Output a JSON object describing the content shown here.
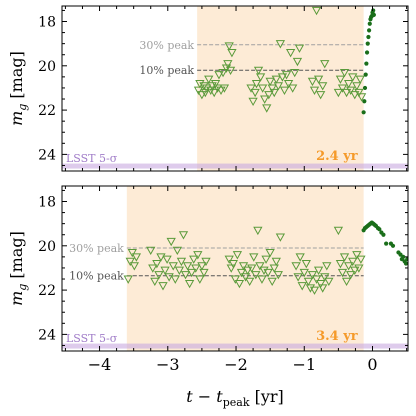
{
  "colors": {
    "window": "#fdebd6",
    "window_label": "#f59a2a",
    "lsst_band": "#c8a8e0",
    "lsst_label": "#a07cc8",
    "upper_limit": "#5a9a3a",
    "detection": "#1a6e1a",
    "line30": "#a0a0a0",
    "line10": "#555555"
  },
  "figure": {
    "xlabel": "t − t_peak [yr]",
    "x_tick_labels": [
      "−4",
      "−3",
      "−2",
      "−1",
      "0"
    ],
    "xlim": [
      -4.55,
      0.52
    ]
  },
  "chart_data": [
    {
      "type": "scatter",
      "ylabel": "m_g [mag]",
      "ylim": [
        24.75,
        17.3
      ],
      "y_ticks": [
        18,
        20,
        22,
        24
      ],
      "y_tick_labels": [
        "18",
        "20",
        "22",
        "24"
      ],
      "window": {
        "start": -2.57,
        "end": -0.13,
        "duration_label": "2.4 yr"
      },
      "lsst_limit": {
        "mag": 24.55,
        "label": "LSST 5-σ"
      },
      "peak_lines": [
        {
          "label": "30% peak",
          "mag": 19.05
        },
        {
          "label": "10% peak",
          "mag": 20.2
        }
      ],
      "series": [
        {
          "kind": "upper_limits",
          "points": [
            [
              -2.55,
              21.1
            ],
            [
              -2.53,
              20.8
            ],
            [
              -2.5,
              21.3
            ],
            [
              -2.47,
              20.9
            ],
            [
              -2.45,
              21.2
            ],
            [
              -2.43,
              21.0
            ],
            [
              -2.4,
              20.6
            ],
            [
              -2.37,
              21.1
            ],
            [
              -2.35,
              20.9
            ],
            [
              -2.32,
              21.2
            ],
            [
              -2.3,
              20.8
            ],
            [
              -2.27,
              21.0
            ],
            [
              -2.25,
              20.4
            ],
            [
              -2.22,
              21.1
            ],
            [
              -2.19,
              20.3
            ],
            [
              -2.17,
              21.0
            ],
            [
              -2.14,
              20.1
            ],
            [
              -2.12,
              19.9
            ],
            [
              -2.1,
              19.1
            ],
            [
              -2.08,
              20.2
            ],
            [
              -2.06,
              19.4
            ],
            [
              -1.78,
              21.0
            ],
            [
              -1.75,
              21.6
            ],
            [
              -1.72,
              21.2
            ],
            [
              -1.7,
              20.8
            ],
            [
              -1.67,
              20.2
            ],
            [
              -1.64,
              20.5
            ],
            [
              -1.61,
              21.0
            ],
            [
              -1.58,
              21.5
            ],
            [
              -1.55,
              21.9
            ],
            [
              -1.52,
              21.3
            ],
            [
              -1.5,
              20.7
            ],
            [
              -1.47,
              21.0
            ],
            [
              -1.44,
              21.2
            ],
            [
              -1.41,
              20.6
            ],
            [
              -1.38,
              20.9
            ],
            [
              -1.35,
              19.0
            ],
            [
              -1.32,
              20.5
            ],
            [
              -1.29,
              21.1
            ],
            [
              -1.26,
              20.4
            ],
            [
              -1.23,
              20.8
            ],
            [
              -1.2,
              19.4
            ],
            [
              -1.17,
              21.0
            ],
            [
              -1.14,
              20.3
            ],
            [
              -1.1,
              19.8
            ],
            [
              -1.07,
              19.2
            ],
            [
              -0.88,
              20.7
            ],
            [
              -0.85,
              21.1
            ],
            [
              -0.82,
              17.5
            ],
            [
              -0.79,
              20.6
            ],
            [
              -0.76,
              21.3
            ],
            [
              -0.73,
              20.9
            ],
            [
              -0.7,
              19.9
            ],
            [
              -0.5,
              21.2
            ],
            [
              -0.47,
              20.6
            ],
            [
              -0.44,
              21.0
            ],
            [
              -0.41,
              20.3
            ],
            [
              -0.38,
              21.2
            ],
            [
              -0.35,
              20.8
            ],
            [
              -0.32,
              21.1
            ],
            [
              -0.29,
              20.5
            ],
            [
              -0.26,
              21.3
            ],
            [
              -0.23,
              20.9
            ],
            [
              -0.2,
              21.2
            ],
            [
              -0.18,
              20.6
            ],
            [
              -0.16,
              21.4
            ]
          ]
        },
        {
          "kind": "detections",
          "points": [
            [
              -0.13,
              22.1
            ],
            [
              -0.12,
              21.6
            ],
            [
              -0.11,
              21.0
            ],
            [
              -0.1,
              20.4
            ],
            [
              -0.09,
              19.9
            ],
            [
              -0.08,
              19.4
            ],
            [
              -0.07,
              19.0
            ],
            [
              -0.06,
              18.7
            ],
            [
              -0.05,
              18.4
            ],
            [
              -0.04,
              18.1
            ],
            [
              -0.03,
              17.9
            ],
            [
              -0.02,
              17.8
            ],
            [
              -0.01,
              17.75
            ],
            [
              0.0,
              17.6
            ],
            [
              0.01,
              17.5
            ],
            [
              0.02,
              17.7
            ]
          ]
        }
      ]
    },
    {
      "type": "scatter",
      "ylabel": "m_g [mag]",
      "ylim": [
        24.75,
        17.3
      ],
      "y_ticks": [
        18,
        20,
        22,
        24
      ],
      "y_tick_labels": [
        "18",
        "20",
        "22",
        "24"
      ],
      "window": {
        "start": -3.6,
        "end": -0.13,
        "duration_label": "3.4 yr"
      },
      "lsst_limit": {
        "mag": 24.55,
        "label": "LSST 5-σ"
      },
      "peak_lines": [
        {
          "label": "30% peak",
          "mag": 20.1
        },
        {
          "label": "10% peak",
          "mag": 21.35
        }
      ],
      "series": [
        {
          "kind": "upper_limits",
          "points": [
            [
              -3.58,
              21.5
            ],
            [
              -3.55,
              20.7
            ],
            [
              -3.52,
              20.3
            ],
            [
              -3.49,
              20.9
            ],
            [
              -3.46,
              20.5
            ],
            [
              -3.25,
              20.2
            ],
            [
              -3.22,
              21.0
            ],
            [
              -3.19,
              21.6
            ],
            [
              -3.16,
              20.8
            ],
            [
              -3.13,
              21.3
            ],
            [
              -3.1,
              20.5
            ],
            [
              -3.07,
              21.8
            ],
            [
              -3.04,
              21.1
            ],
            [
              -3.01,
              20.6
            ],
            [
              -2.98,
              21.4
            ],
            [
              -2.95,
              19.8
            ],
            [
              -2.92,
              20.9
            ],
            [
              -2.89,
              21.5
            ],
            [
              -2.86,
              20.2
            ],
            [
              -2.83,
              21.1
            ],
            [
              -2.8,
              20.7
            ],
            [
              -2.77,
              19.5
            ],
            [
              -2.74,
              21.3
            ],
            [
              -2.71,
              20.9
            ],
            [
              -2.68,
              21.7
            ],
            [
              -2.65,
              21.2
            ],
            [
              -2.62,
              20.6
            ],
            [
              -2.59,
              21.0
            ],
            [
              -2.56,
              20.4
            ],
            [
              -2.53,
              21.5
            ],
            [
              -2.5,
              20.9
            ],
            [
              -2.47,
              21.2
            ],
            [
              -2.44,
              20.7
            ],
            [
              -2.1,
              20.6
            ],
            [
              -2.07,
              21.0
            ],
            [
              -2.04,
              20.8
            ],
            [
              -2.01,
              21.5
            ],
            [
              -1.98,
              20.4
            ],
            [
              -1.95,
              21.7
            ],
            [
              -1.92,
              21.2
            ],
            [
              -1.89,
              20.9
            ],
            [
              -1.86,
              21.4
            ],
            [
              -1.83,
              21.1
            ],
            [
              -1.8,
              21.6
            ],
            [
              -1.77,
              21.0
            ],
            [
              -1.74,
              20.5
            ],
            [
              -1.71,
              21.3
            ],
            [
              -1.68,
              19.3
            ],
            [
              -1.65,
              20.9
            ],
            [
              -1.62,
              21.5
            ],
            [
              -1.59,
              21.1
            ],
            [
              -1.56,
              20.6
            ],
            [
              -1.53,
              21.2
            ],
            [
              -1.5,
              20.3
            ],
            [
              -1.47,
              21.6
            ],
            [
              -1.44,
              21.0
            ],
            [
              -1.41,
              20.7
            ],
            [
              -1.38,
              21.3
            ],
            [
              -1.35,
              19.6
            ],
            [
              -1.12,
              20.9
            ],
            [
              -1.09,
              21.4
            ],
            [
              -1.06,
              20.5
            ],
            [
              -1.03,
              21.8
            ],
            [
              -1.0,
              21.2
            ],
            [
              -0.97,
              20.8
            ],
            [
              -0.94,
              21.6
            ],
            [
              -0.91,
              21.9
            ],
            [
              -0.88,
              21.3
            ],
            [
              -0.85,
              22.0
            ],
            [
              -0.82,
              21.5
            ],
            [
              -0.79,
              21.1
            ],
            [
              -0.76,
              21.7
            ],
            [
              -0.73,
              21.9
            ],
            [
              -0.7,
              21.4
            ],
            [
              -0.67,
              20.9
            ],
            [
              -0.64,
              21.6
            ],
            [
              -0.5,
              19.3
            ],
            [
              -0.47,
              20.8
            ],
            [
              -0.44,
              21.2
            ],
            [
              -0.41,
              20.5
            ],
            [
              -0.38,
              21.6
            ],
            [
              -0.35,
              20.9
            ],
            [
              -0.32,
              21.3
            ],
            [
              -0.29,
              20.7
            ],
            [
              -0.26,
              21.1
            ],
            [
              -0.23,
              20.4
            ],
            [
              -0.2,
              21.0
            ],
            [
              -0.17,
              20.6
            ]
          ]
        },
        {
          "kind": "detections",
          "points": [
            [
              -0.13,
              19.3
            ],
            [
              -0.11,
              19.2
            ],
            [
              -0.09,
              19.15
            ],
            [
              -0.07,
              19.1
            ],
            [
              -0.05,
              19.05
            ],
            [
              -0.03,
              19.0
            ],
            [
              -0.01,
              18.95
            ],
            [
              0.01,
              19.0
            ],
            [
              0.03,
              19.05
            ],
            [
              0.05,
              19.1
            ],
            [
              0.08,
              19.2
            ],
            [
              0.1,
              19.25
            ],
            [
              0.13,
              19.4
            ],
            [
              0.16,
              19.5
            ],
            [
              0.2,
              19.9
            ],
            [
              0.27,
              19.9
            ],
            [
              0.3,
              20.0
            ],
            [
              0.38,
              20.3
            ],
            [
              0.41,
              20.4
            ],
            [
              0.43,
              20.6
            ],
            [
              0.45,
              20.5
            ],
            [
              0.47,
              20.7
            ],
            [
              0.49,
              20.8
            ],
            [
              0.51,
              20.6
            ]
          ]
        }
      ]
    }
  ]
}
